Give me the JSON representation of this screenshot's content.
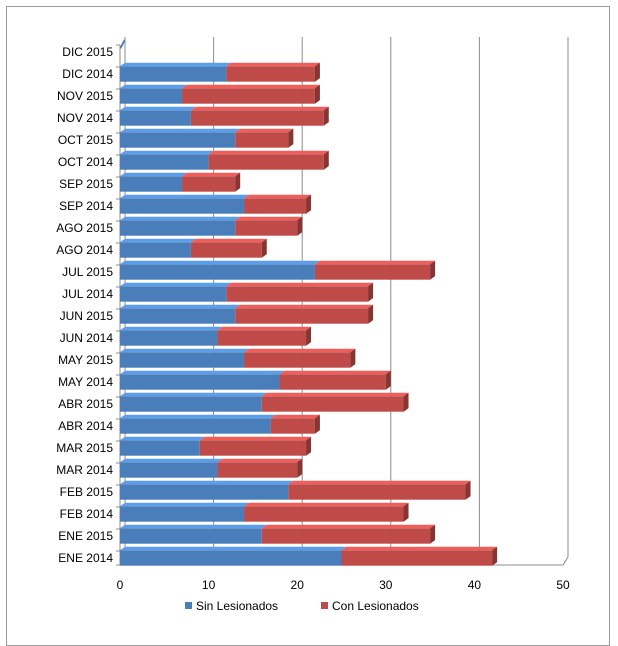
{
  "chart_data": {
    "type": "bar",
    "orientation": "horizontal",
    "stacked": true,
    "categories": [
      "DIC 2015",
      "DIC 2014",
      "NOV 2015",
      "NOV 2014",
      "OCT 2015",
      "OCT 2014",
      "SEP 2015",
      "SEP 2014",
      "AGO 2015",
      "AGO 2014",
      "JUL 2015",
      "JUL 2014",
      "JUN 2015",
      "JUN 2014",
      "MAY 2015",
      "MAY 2014",
      "ABR 2015",
      "ABR 2014",
      "MAR 2015",
      "MAR 2014",
      "FEB 2015",
      "FEB 2014",
      "ENE 2015",
      "ENE 2014"
    ],
    "series": [
      {
        "name": "Sin Lesionados",
        "color": "#4a7ebb",
        "values": [
          0,
          12,
          7,
          8,
          13,
          10,
          7,
          14,
          13,
          8,
          22,
          12,
          13,
          11,
          14,
          18,
          16,
          17,
          9,
          11,
          19,
          14,
          16,
          25
        ]
      },
      {
        "name": "Con Lesionados",
        "color": "#be4b48",
        "values": [
          0,
          10,
          15,
          15,
          6,
          13,
          6,
          7,
          7,
          8,
          13,
          16,
          15,
          10,
          12,
          12,
          16,
          5,
          12,
          9,
          20,
          18,
          19,
          17
        ]
      }
    ],
    "xlim": [
      0,
      50
    ],
    "xticks": [
      "0",
      "10",
      "20",
      "30",
      "40",
      "50"
    ],
    "grid": true,
    "legend": "bottom",
    "title": "",
    "xlabel": "",
    "ylabel": ""
  }
}
